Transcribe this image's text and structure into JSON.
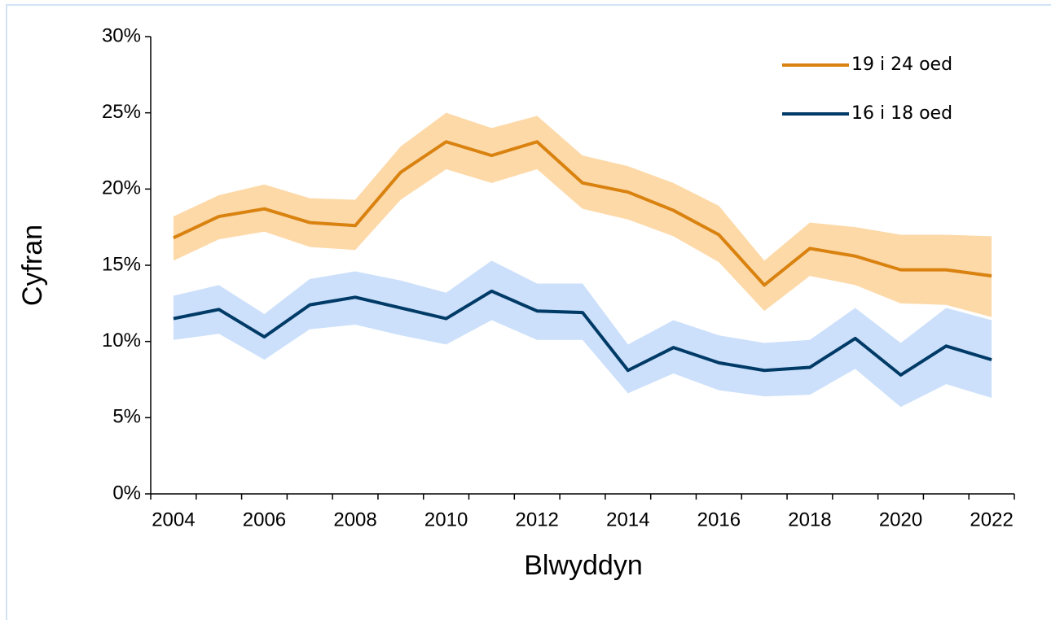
{
  "chart_data": {
    "type": "line",
    "xlabel": "Blwyddyn",
    "ylabel": "Cyfran",
    "categories": [
      "2004",
      null,
      "2006",
      null,
      "2008",
      null,
      "2010",
      null,
      "2012",
      null,
      "2014",
      null,
      "2016",
      null,
      "2018",
      null,
      "2020",
      null,
      "2022"
    ],
    "ylim": [
      0,
      30
    ],
    "yticks": [
      {
        "value": 0,
        "label": "0%"
      },
      {
        "value": 5,
        "label": "5%"
      },
      {
        "value": 10,
        "label": "10%"
      },
      {
        "value": 15,
        "label": "15%"
      },
      {
        "value": 20,
        "label": "20%"
      },
      {
        "value": 25,
        "label": "25%"
      },
      {
        "value": 30,
        "label": "30%"
      }
    ],
    "legend": "upper right",
    "series": [
      {
        "name": "19 i 24 oed",
        "color": "#d9820f",
        "band_color": "#fdd9a8",
        "values": [
          16.8,
          18.2,
          18.7,
          17.8,
          17.6,
          21.1,
          23.1,
          22.2,
          23.1,
          20.4,
          19.8,
          18.6,
          17.0,
          13.7,
          16.1,
          15.6,
          14.7,
          14.7,
          14.3
        ],
        "upper": [
          18.2,
          19.6,
          20.3,
          19.4,
          19.3,
          22.8,
          25.0,
          24.0,
          24.8,
          22.2,
          21.5,
          20.4,
          18.9,
          15.3,
          17.8,
          17.5,
          17.0,
          17.0,
          16.9
        ],
        "lower": [
          15.3,
          16.7,
          17.2,
          16.2,
          16.0,
          19.3,
          21.3,
          20.4,
          21.3,
          18.7,
          18.0,
          16.9,
          15.2,
          12.0,
          14.3,
          13.7,
          12.5,
          12.4,
          11.6
        ]
      },
      {
        "name": "16 i 18 oed",
        "color": "#003a66",
        "band_color": "#cce0fb",
        "values": [
          11.5,
          12.1,
          10.3,
          12.4,
          12.9,
          12.2,
          11.5,
          13.3,
          12.0,
          11.9,
          8.1,
          9.6,
          8.6,
          8.1,
          8.3,
          10.2,
          7.8,
          9.7,
          8.8
        ],
        "upper": [
          13.0,
          13.7,
          11.8,
          14.1,
          14.6,
          14.0,
          13.2,
          15.3,
          13.8,
          13.8,
          9.8,
          11.4,
          10.4,
          9.9,
          10.1,
          12.2,
          9.9,
          12.2,
          11.4
        ],
        "lower": [
          10.1,
          10.5,
          8.8,
          10.8,
          11.1,
          10.4,
          9.8,
          11.4,
          10.1,
          10.1,
          6.6,
          7.9,
          6.8,
          6.4,
          6.5,
          8.2,
          5.7,
          7.2,
          6.3
        ]
      }
    ]
  }
}
